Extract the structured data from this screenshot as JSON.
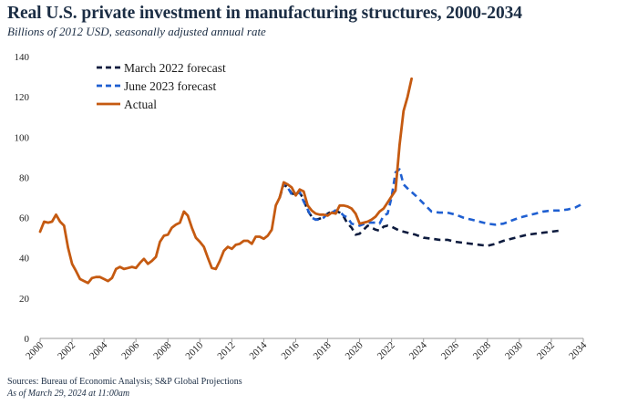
{
  "chart_data": {
    "type": "line",
    "title": "Real U.S. private investment in manufacturing structures, 2000-2034",
    "subtitle": "Billions of 2012 USD, seasonally adjusted annual rate",
    "xlabel": "",
    "ylabel": "",
    "xlim": [
      2000,
      2034
    ],
    "ylim": [
      0,
      140
    ],
    "y_ticks": [
      0,
      20,
      40,
      60,
      80,
      100,
      120,
      140
    ],
    "x_ticks": [
      2000,
      2002,
      2004,
      2006,
      2008,
      2010,
      2012,
      2014,
      2016,
      2018,
      2020,
      2022,
      2024,
      2026,
      2028,
      2030,
      2032,
      2034
    ],
    "legend": [
      "March 2022 forecast",
      "June 2023 forecast",
      "Actual"
    ],
    "legend_position": "top-left",
    "grid": false,
    "series": [
      {
        "name": "Actual",
        "color": "#c55a11",
        "style": "solid",
        "points": [
          [
            2000.0,
            53
          ],
          [
            2000.25,
            58
          ],
          [
            2000.5,
            57.5
          ],
          [
            2000.75,
            58
          ],
          [
            2001.0,
            61.5
          ],
          [
            2001.25,
            58
          ],
          [
            2001.5,
            56
          ],
          [
            2001.75,
            45
          ],
          [
            2002.0,
            37
          ],
          [
            2002.25,
            33.5
          ],
          [
            2002.5,
            29.5
          ],
          [
            2002.75,
            28.5
          ],
          [
            2003.0,
            27.5
          ],
          [
            2003.25,
            30
          ],
          [
            2003.5,
            30.5
          ],
          [
            2003.75,
            30.5
          ],
          [
            2004.0,
            29.5
          ],
          [
            2004.25,
            28.5
          ],
          [
            2004.5,
            30
          ],
          [
            2004.75,
            34.5
          ],
          [
            2005.0,
            35.5
          ],
          [
            2005.25,
            34.5
          ],
          [
            2005.5,
            35
          ],
          [
            2005.75,
            35.5
          ],
          [
            2006.0,
            35
          ],
          [
            2006.25,
            37.5
          ],
          [
            2006.5,
            39.5
          ],
          [
            2006.75,
            37
          ],
          [
            2007.0,
            38.5
          ],
          [
            2007.25,
            40.5
          ],
          [
            2007.5,
            48
          ],
          [
            2007.75,
            51
          ],
          [
            2008.0,
            51.5
          ],
          [
            2008.25,
            55
          ],
          [
            2008.5,
            56.5
          ],
          [
            2008.75,
            57.5
          ],
          [
            2009.0,
            63
          ],
          [
            2009.25,
            61
          ],
          [
            2009.5,
            55
          ],
          [
            2009.75,
            50
          ],
          [
            2010.0,
            48
          ],
          [
            2010.25,
            45.5
          ],
          [
            2010.5,
            40
          ],
          [
            2010.75,
            35
          ],
          [
            2011.0,
            34.5
          ],
          [
            2011.25,
            38.5
          ],
          [
            2011.5,
            43.5
          ],
          [
            2011.75,
            45.5
          ],
          [
            2012.0,
            44.5
          ],
          [
            2012.25,
            46.5
          ],
          [
            2012.5,
            47
          ],
          [
            2012.75,
            48.5
          ],
          [
            2013.0,
            48.5
          ],
          [
            2013.25,
            47
          ],
          [
            2013.5,
            50.5
          ],
          [
            2013.75,
            50.5
          ],
          [
            2014.0,
            49.5
          ],
          [
            2014.25,
            51
          ],
          [
            2014.5,
            54
          ],
          [
            2014.75,
            66
          ],
          [
            2015.0,
            70
          ],
          [
            2015.25,
            77.5
          ],
          [
            2015.5,
            76.5
          ],
          [
            2015.75,
            75
          ],
          [
            2016.0,
            71
          ],
          [
            2016.25,
            74
          ],
          [
            2016.5,
            73
          ],
          [
            2016.75,
            66
          ],
          [
            2017.0,
            63.5
          ],
          [
            2017.25,
            62
          ],
          [
            2017.5,
            61.5
          ],
          [
            2017.75,
            61.5
          ],
          [
            2018.0,
            61
          ],
          [
            2018.25,
            62.5
          ],
          [
            2018.5,
            62
          ],
          [
            2018.75,
            66
          ],
          [
            2019.0,
            66
          ],
          [
            2019.25,
            65.5
          ],
          [
            2019.5,
            64.5
          ],
          [
            2019.75,
            62
          ],
          [
            2020.0,
            57
          ],
          [
            2020.25,
            57.5
          ],
          [
            2020.5,
            58
          ],
          [
            2020.75,
            59
          ],
          [
            2021.0,
            60.5
          ],
          [
            2021.25,
            63
          ],
          [
            2021.5,
            64.5
          ],
          [
            2021.75,
            67.5
          ],
          [
            2022.0,
            70.5
          ],
          [
            2022.25,
            73.5
          ],
          [
            2022.5,
            96
          ],
          [
            2022.75,
            113
          ],
          [
            2023.0,
            120
          ],
          [
            2023.25,
            129
          ]
        ]
      },
      {
        "name": "June 2023 forecast",
        "color": "#1f5fd1",
        "style": "dashed",
        "points": [
          [
            2015.0,
            70
          ],
          [
            2015.25,
            77
          ],
          [
            2015.5,
            75
          ],
          [
            2015.75,
            71.5
          ],
          [
            2016.0,
            72
          ],
          [
            2016.25,
            72.5
          ],
          [
            2016.5,
            68
          ],
          [
            2016.75,
            64
          ],
          [
            2017.0,
            60
          ],
          [
            2017.25,
            59
          ],
          [
            2017.5,
            59
          ],
          [
            2017.75,
            60
          ],
          [
            2018.0,
            62
          ],
          [
            2018.25,
            62.5
          ],
          [
            2018.5,
            63.5
          ],
          [
            2018.75,
            63
          ],
          [
            2019.0,
            61
          ],
          [
            2019.25,
            60
          ],
          [
            2019.5,
            57
          ],
          [
            2019.75,
            56.5
          ],
          [
            2020.0,
            56
          ],
          [
            2020.5,
            57.5
          ],
          [
            2021.0,
            57.5
          ],
          [
            2021.25,
            57
          ],
          [
            2021.5,
            61
          ],
          [
            2021.75,
            62
          ],
          [
            2022.0,
            70
          ],
          [
            2022.25,
            82.5
          ],
          [
            2022.5,
            84
          ],
          [
            2022.75,
            76.5
          ],
          [
            2023.0,
            74.5
          ],
          [
            2023.5,
            71
          ],
          [
            2024.0,
            67
          ],
          [
            2024.5,
            63
          ],
          [
            2025.0,
            62.5
          ],
          [
            2025.5,
            62.5
          ],
          [
            2026.0,
            61.5
          ],
          [
            2026.5,
            60
          ],
          [
            2027.0,
            59
          ],
          [
            2027.5,
            58
          ],
          [
            2028.0,
            57
          ],
          [
            2028.5,
            56.5
          ],
          [
            2029.0,
            57
          ],
          [
            2029.5,
            58.5
          ],
          [
            2030.0,
            60
          ],
          [
            2030.5,
            61
          ],
          [
            2031.0,
            62
          ],
          [
            2031.5,
            63
          ],
          [
            2032.0,
            63.5
          ],
          [
            2032.5,
            63.5
          ],
          [
            2033.0,
            64
          ],
          [
            2033.5,
            65
          ],
          [
            2034.0,
            67
          ]
        ]
      },
      {
        "name": "March 2022 forecast",
        "color": "#0d1b3e",
        "style": "dashed",
        "points": [
          [
            2015.0,
            70
          ],
          [
            2015.25,
            76.5
          ],
          [
            2015.5,
            75
          ],
          [
            2015.75,
            72
          ],
          [
            2016.0,
            71.5
          ],
          [
            2016.25,
            72.5
          ],
          [
            2016.5,
            69
          ],
          [
            2016.75,
            63.5
          ],
          [
            2017.0,
            60.5
          ],
          [
            2017.25,
            59
          ],
          [
            2017.5,
            59.5
          ],
          [
            2017.75,
            60.5
          ],
          [
            2018.0,
            62
          ],
          [
            2018.25,
            63
          ],
          [
            2018.5,
            63.5
          ],
          [
            2018.75,
            62.5
          ],
          [
            2019.0,
            60.5
          ],
          [
            2019.25,
            57
          ],
          [
            2019.5,
            55
          ],
          [
            2019.75,
            51.5
          ],
          [
            2020.0,
            52
          ],
          [
            2020.25,
            54
          ],
          [
            2020.5,
            56
          ],
          [
            2020.75,
            55
          ],
          [
            2021.0,
            54
          ],
          [
            2021.25,
            53.5
          ],
          [
            2021.5,
            55.5
          ],
          [
            2021.75,
            56
          ],
          [
            2022.0,
            55.5
          ],
          [
            2022.25,
            54.5
          ],
          [
            2022.5,
            53.5
          ],
          [
            2022.75,
            53
          ],
          [
            2023.0,
            52.5
          ],
          [
            2023.5,
            51.5
          ],
          [
            2024.0,
            50
          ],
          [
            2024.5,
            49.5
          ],
          [
            2025.0,
            49
          ],
          [
            2025.5,
            49
          ],
          [
            2026.0,
            48
          ],
          [
            2026.5,
            47.5
          ],
          [
            2027.0,
            47
          ],
          [
            2027.5,
            46.5
          ],
          [
            2028.0,
            46
          ],
          [
            2028.5,
            47
          ],
          [
            2029.0,
            48.5
          ],
          [
            2029.5,
            49.5
          ],
          [
            2030.0,
            50.5
          ],
          [
            2030.5,
            51.5
          ],
          [
            2031.0,
            52
          ],
          [
            2031.5,
            52.5
          ],
          [
            2032.0,
            53
          ],
          [
            2032.5,
            53.5
          ]
        ]
      }
    ]
  },
  "footer": {
    "sources": "Sources: Bureau of Economic Analysis; S&P Global Projections",
    "as_of": "As of March 29, 2024 at 11:00am"
  }
}
